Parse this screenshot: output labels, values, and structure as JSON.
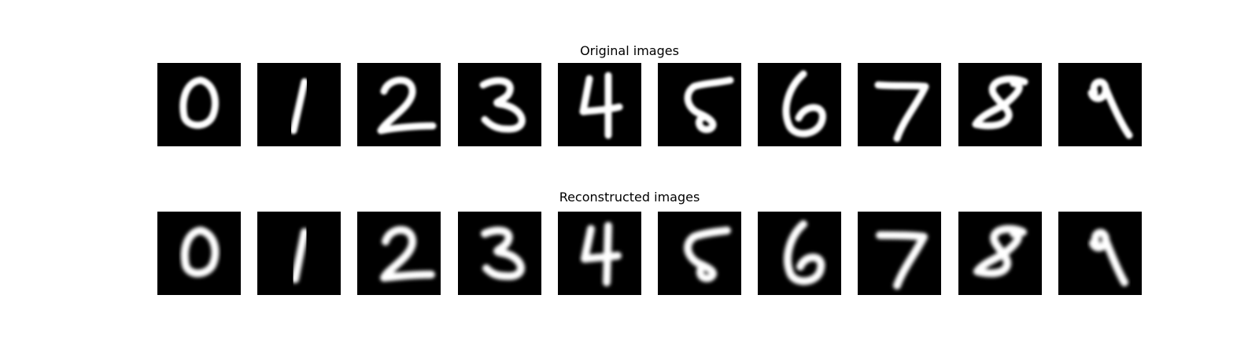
{
  "figure": {
    "rows": [
      {
        "title": "Original images",
        "variant": "orig",
        "digits": [
          "0",
          "1",
          "2",
          "3",
          "4",
          "5",
          "6",
          "7",
          "8",
          "9"
        ]
      },
      {
        "title": "Reconstructed images",
        "variant": "recon",
        "digits": [
          "0",
          "1",
          "2",
          "3",
          "4",
          "5",
          "6",
          "7",
          "8",
          "9"
        ]
      }
    ],
    "colors": {
      "background": "#ffffff",
      "tile": "#000000",
      "stroke": "#ffffff",
      "text": "#000000"
    }
  }
}
